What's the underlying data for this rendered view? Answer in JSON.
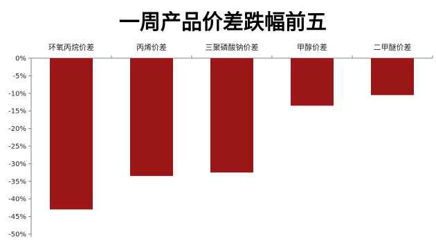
{
  "chart_data": {
    "type": "bar",
    "title": "一周产品价差跌幅前五",
    "categories": [
      "环氧丙烷价差",
      "丙烯价差",
      "三聚磷酸钠价差",
      "甲醇价差",
      "二甲醚价差"
    ],
    "values": [
      -43,
      -33.5,
      -32.5,
      -13.5,
      -10.5
    ],
    "unit": "%",
    "ylim": [
      -50,
      0
    ],
    "y_ticks": [
      0,
      -5,
      -10,
      -15,
      -20,
      -25,
      -30,
      -35,
      -40,
      -45,
      -50
    ],
    "y_tick_labels": [
      "0%",
      "-5%",
      "-10%",
      "-15%",
      "-20%",
      "-25%",
      "-30%",
      "-35%",
      "-40%",
      "-45%",
      "-50%"
    ],
    "category_labels_position": "top",
    "bar_color": "#9b1717",
    "grid": false,
    "legend": false
  }
}
